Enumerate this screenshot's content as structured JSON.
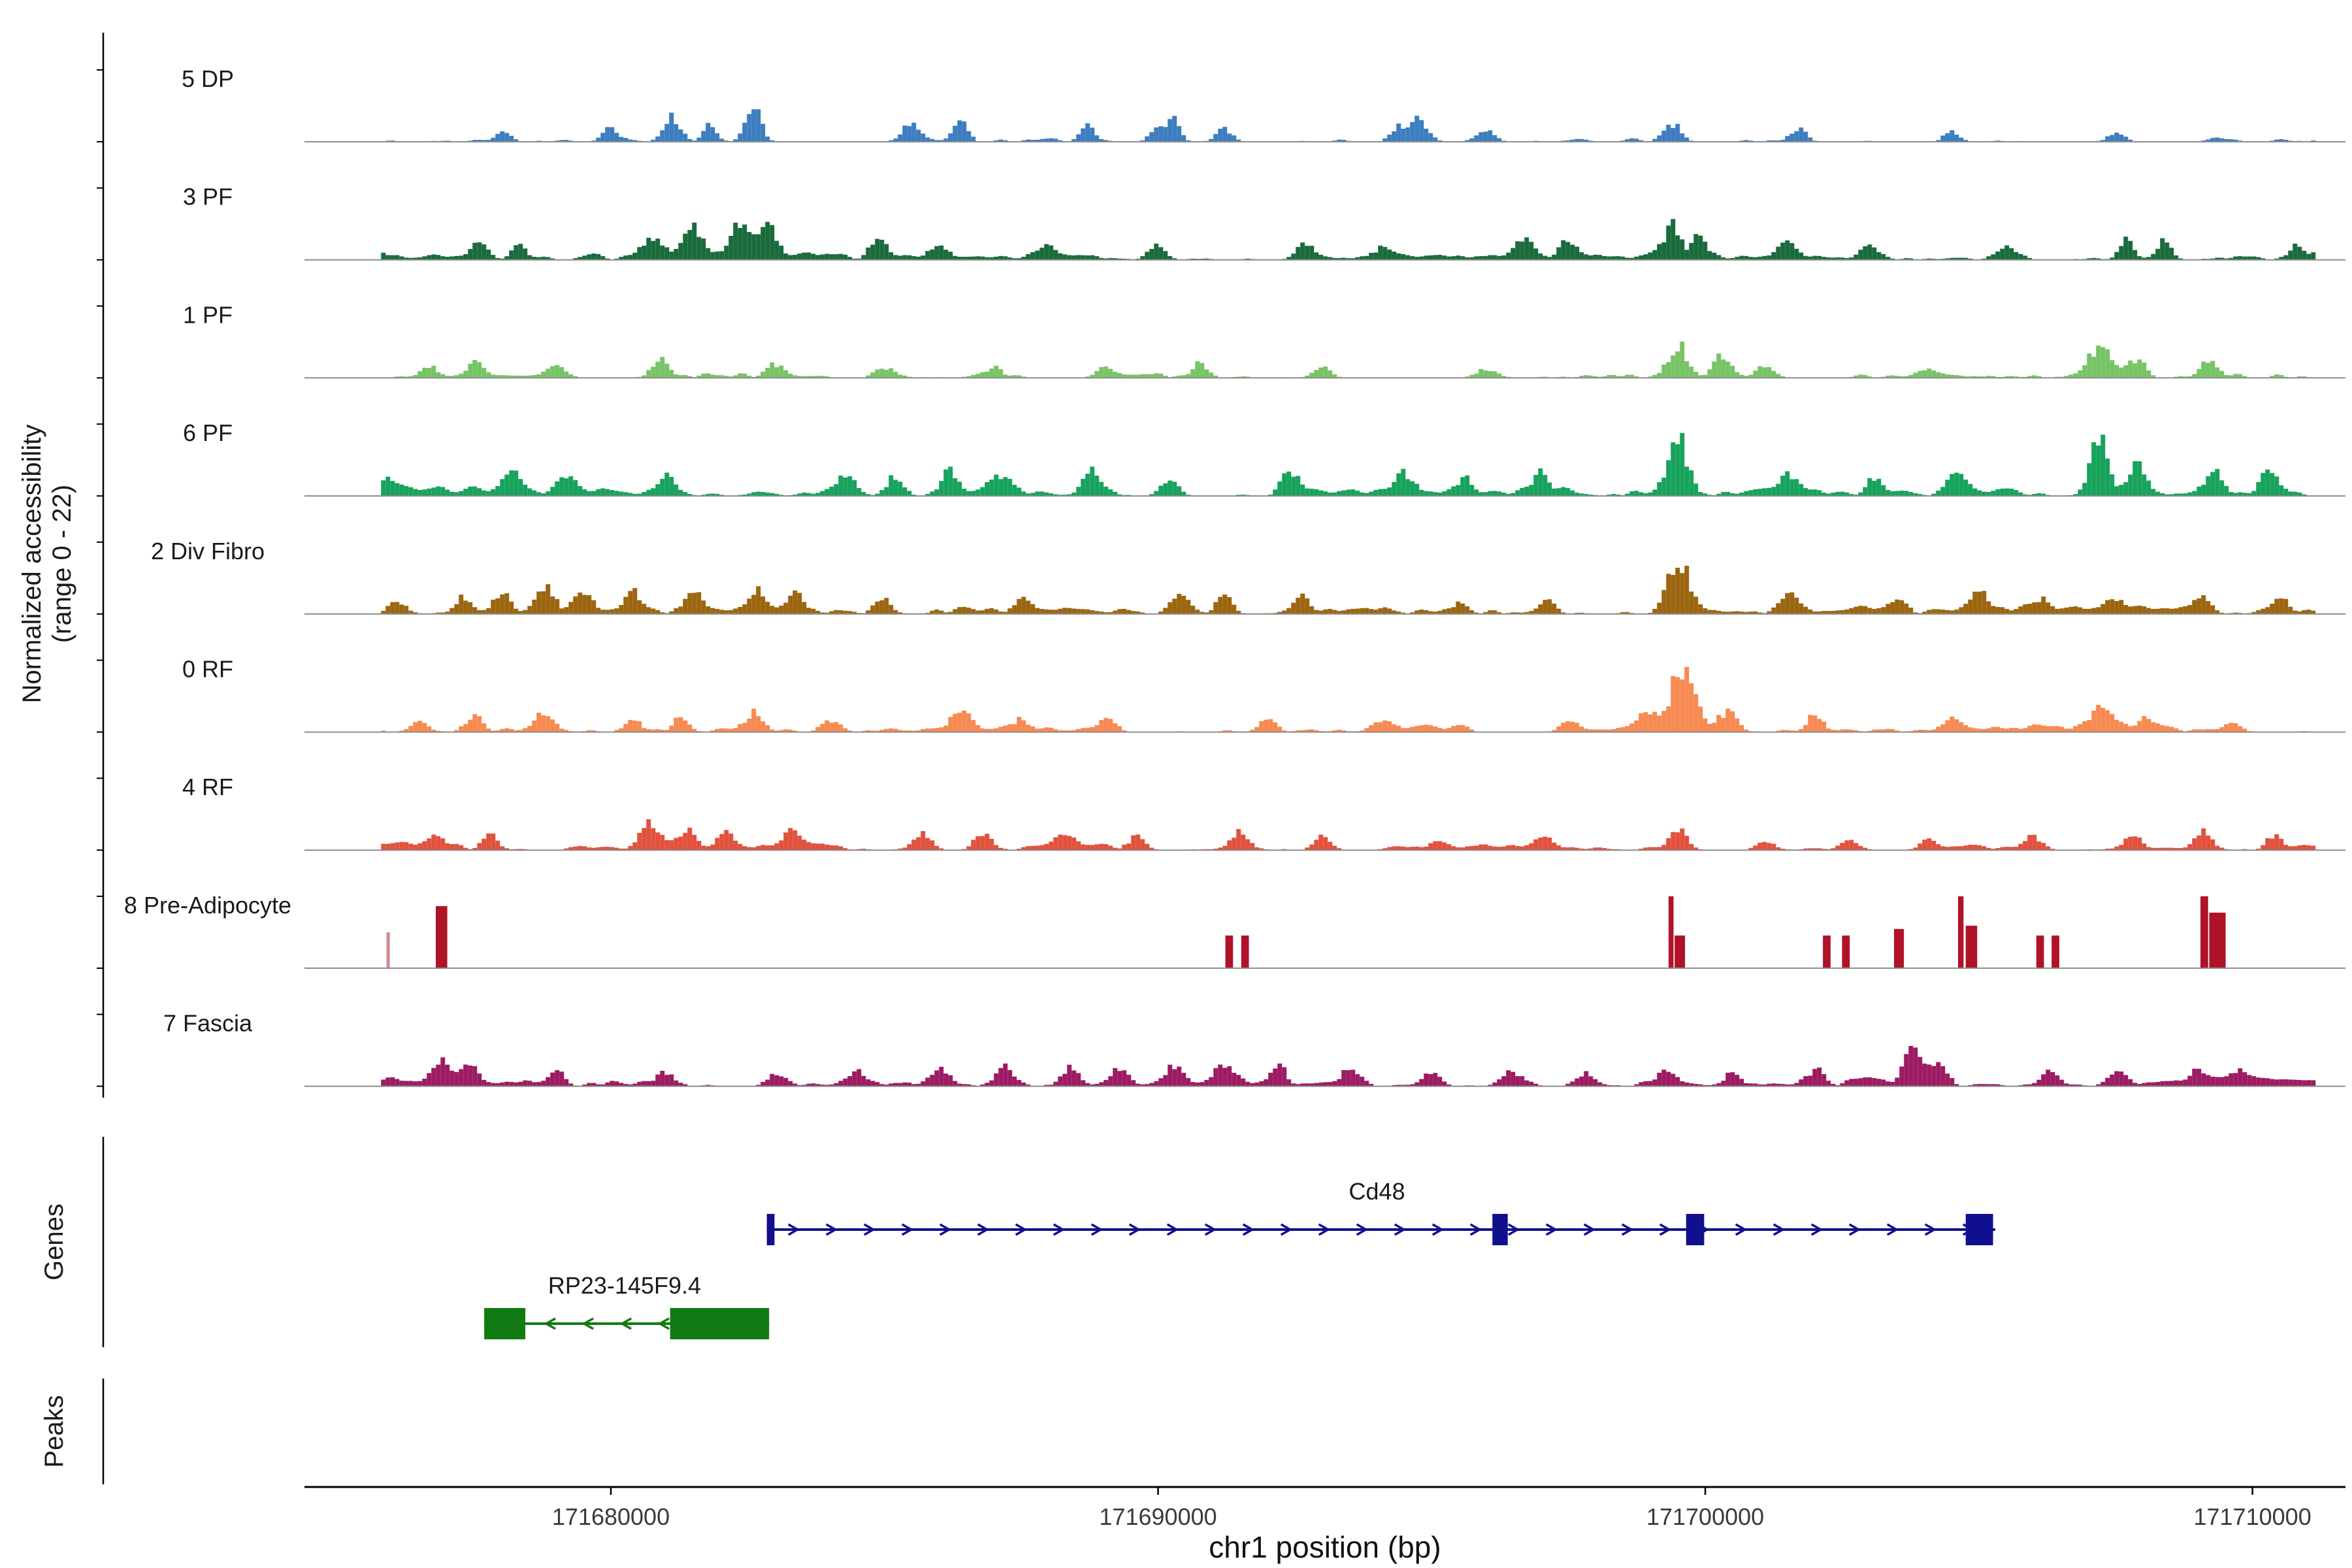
{
  "figure": {
    "y_axis_label_line1": "Normalized accessibility",
    "y_axis_label_line2": "(range 0 - 22)",
    "genes_section_label": "Genes",
    "peaks_section_label": "Peaks",
    "x_axis_title": "chr1 position (bp)"
  },
  "chart_data": {
    "type": "area",
    "title": "",
    "xlabel": "chr1 position (bp)",
    "ylabel": "Normalized accessibility (range 0 - 22)",
    "region": {
      "chromosome": "chr1",
      "start": 171674400,
      "end": 171711700,
      "data_extent": [
        171675800,
        171711200
      ]
    },
    "x_ticks": [
      171680000,
      171690000,
      171700000,
      171710000
    ],
    "y_value_range": [
      0,
      22
    ],
    "baseline_color": "#8C8C8C",
    "tracks": [
      {
        "name": "5 DP",
        "color": "#3C7EC0",
        "style": "wiggle",
        "noise": {
          "seed": 101,
          "density": 0.2,
          "max": 1.6
        },
        "peaks": [
          [
            171678000,
            3,
            120
          ],
          [
            171680000,
            4,
            140
          ],
          [
            171681100,
            8,
            130
          ],
          [
            171681800,
            5,
            110
          ],
          [
            171682500,
            6,
            110
          ],
          [
            171682700,
            7,
            100
          ],
          [
            171685500,
            5,
            150
          ],
          [
            171686400,
            7,
            120
          ],
          [
            171688700,
            5,
            120
          ],
          [
            171690000,
            5,
            130
          ],
          [
            171690300,
            6,
            110
          ],
          [
            171691200,
            4,
            140
          ],
          [
            171694500,
            5,
            150
          ],
          [
            171694800,
            6,
            120
          ],
          [
            171696000,
            4,
            130
          ],
          [
            171699400,
            5,
            150
          ],
          [
            171701700,
            4,
            140
          ],
          [
            171704500,
            3,
            140
          ],
          [
            171707500,
            3,
            130
          ]
        ]
      },
      {
        "name": "3 PF",
        "color": "#1A6B3C",
        "style": "wiggle",
        "noise": {
          "seed": 102,
          "density": 0.42,
          "max": 1.8
        },
        "peaks": [
          [
            171677600,
            4,
            140
          ],
          [
            171678300,
            4,
            120
          ],
          [
            171680800,
            7,
            180
          ],
          [
            171681500,
            9,
            170
          ],
          [
            171682400,
            10,
            190
          ],
          [
            171682900,
            8,
            150
          ],
          [
            171684900,
            6,
            150
          ],
          [
            171686000,
            4,
            150
          ],
          [
            171688000,
            4,
            150
          ],
          [
            171690000,
            4,
            150
          ],
          [
            171692700,
            5,
            140
          ],
          [
            171694100,
            4,
            150
          ],
          [
            171696700,
            6,
            150
          ],
          [
            171697500,
            5,
            130
          ],
          [
            171699400,
            10,
            150
          ],
          [
            171699900,
            6,
            130
          ],
          [
            171701500,
            4,
            150
          ],
          [
            171703000,
            4,
            150
          ],
          [
            171705500,
            3,
            150
          ],
          [
            171707700,
            5,
            140
          ],
          [
            171708400,
            5,
            130
          ],
          [
            171710800,
            3,
            120
          ]
        ]
      },
      {
        "name": "1 PF",
        "color": "#77C466",
        "style": "wiggle",
        "noise": {
          "seed": 103,
          "density": 0.36,
          "max": 1.7
        },
        "peaks": [
          [
            171676700,
            3,
            150
          ],
          [
            171677500,
            4,
            140
          ],
          [
            171679000,
            4,
            150
          ],
          [
            171680900,
            5,
            160
          ],
          [
            171683000,
            4,
            150
          ],
          [
            171685000,
            3,
            150
          ],
          [
            171687000,
            3,
            150
          ],
          [
            171689000,
            3,
            140
          ],
          [
            171690800,
            4,
            130
          ],
          [
            171693000,
            3,
            150
          ],
          [
            171696000,
            3,
            150
          ],
          [
            171699500,
            10,
            170
          ],
          [
            171700300,
            7,
            150
          ],
          [
            171701100,
            4,
            150
          ],
          [
            171704000,
            3,
            150
          ],
          [
            171707200,
            8,
            200
          ],
          [
            171707900,
            5,
            150
          ],
          [
            171709200,
            4,
            150
          ]
        ]
      },
      {
        "name": "6 PF",
        "color": "#17A35C",
        "style": "wiggle",
        "noise": {
          "seed": 104,
          "density": 0.5,
          "max": 2.2
        },
        "peaks": [
          [
            171676000,
            3,
            150
          ],
          [
            171678200,
            5,
            160
          ],
          [
            171679200,
            5,
            150
          ],
          [
            171681000,
            6,
            160
          ],
          [
            171684300,
            6,
            180
          ],
          [
            171685200,
            6,
            150
          ],
          [
            171686200,
            6,
            150
          ],
          [
            171687100,
            5,
            150
          ],
          [
            171688800,
            7,
            150
          ],
          [
            171690200,
            5,
            150
          ],
          [
            171692400,
            7,
            150
          ],
          [
            171694500,
            6,
            160
          ],
          [
            171695600,
            5,
            150
          ],
          [
            171697000,
            6,
            150
          ],
          [
            171699500,
            18,
            170
          ],
          [
            171701500,
            5,
            150
          ],
          [
            171703100,
            5,
            150
          ],
          [
            171704600,
            5,
            150
          ],
          [
            171707200,
            16,
            160
          ],
          [
            171707900,
            8,
            150
          ],
          [
            171709300,
            7,
            160
          ],
          [
            171710300,
            6,
            150
          ]
        ]
      },
      {
        "name": "2 Div Fibro",
        "color": "#9C6611",
        "style": "wiggle",
        "noise": {
          "seed": 105,
          "density": 0.45,
          "max": 2.0
        },
        "peaks": [
          [
            171676100,
            4,
            150
          ],
          [
            171677300,
            5,
            150
          ],
          [
            171678000,
            6,
            160
          ],
          [
            171678800,
            8,
            170
          ],
          [
            171679500,
            6,
            150
          ],
          [
            171680400,
            6,
            150
          ],
          [
            171681500,
            5,
            150
          ],
          [
            171682700,
            7,
            160
          ],
          [
            171683400,
            5,
            150
          ],
          [
            171685000,
            4,
            150
          ],
          [
            171687500,
            4,
            150
          ],
          [
            171690400,
            5,
            150
          ],
          [
            171691200,
            5,
            140
          ],
          [
            171692600,
            4,
            150
          ],
          [
            171695500,
            3,
            150
          ],
          [
            171697100,
            3,
            150
          ],
          [
            171699500,
            16,
            180
          ],
          [
            171701500,
            4,
            150
          ],
          [
            171703500,
            4,
            150
          ],
          [
            171705000,
            5,
            150
          ],
          [
            171706100,
            4,
            150
          ],
          [
            171707500,
            4,
            150
          ],
          [
            171709100,
            3,
            150
          ],
          [
            171710500,
            5,
            140
          ]
        ]
      },
      {
        "name": "0 RF",
        "color": "#F78A52",
        "style": "wiggle",
        "noise": {
          "seed": 106,
          "density": 0.42,
          "max": 1.8
        },
        "peaks": [
          [
            171676500,
            3,
            150
          ],
          [
            171677500,
            4,
            150
          ],
          [
            171678800,
            5,
            160
          ],
          [
            171680400,
            4,
            150
          ],
          [
            171681300,
            4,
            140
          ],
          [
            171682600,
            6,
            160
          ],
          [
            171684000,
            3,
            150
          ],
          [
            171686400,
            6,
            170
          ],
          [
            171687500,
            4,
            150
          ],
          [
            171689100,
            3,
            150
          ],
          [
            171692000,
            4,
            150
          ],
          [
            171694100,
            3,
            150
          ],
          [
            171697500,
            3,
            150
          ],
          [
            171698900,
            6,
            200
          ],
          [
            171699600,
            20,
            220
          ],
          [
            171700400,
            6,
            180
          ],
          [
            171702000,
            4,
            150
          ],
          [
            171704500,
            3,
            150
          ],
          [
            171707300,
            7,
            250
          ],
          [
            171708100,
            4,
            150
          ],
          [
            171709600,
            3,
            150
          ]
        ]
      },
      {
        "name": "4 RF",
        "color": "#E1523D",
        "style": "wiggle",
        "noise": {
          "seed": 107,
          "density": 0.5,
          "max": 1.8
        },
        "peaks": [
          [
            171676800,
            3,
            150
          ],
          [
            171677800,
            4,
            150
          ],
          [
            171680700,
            8,
            170
          ],
          [
            171681400,
            6,
            150
          ],
          [
            171682100,
            5,
            150
          ],
          [
            171683300,
            5,
            150
          ],
          [
            171685700,
            5,
            160
          ],
          [
            171686800,
            5,
            150
          ],
          [
            171688300,
            4,
            150
          ],
          [
            171689600,
            4,
            150
          ],
          [
            171691500,
            5,
            150
          ],
          [
            171693000,
            4,
            150
          ],
          [
            171695100,
            3,
            150
          ],
          [
            171697000,
            3,
            150
          ],
          [
            171699500,
            6,
            160
          ],
          [
            171701100,
            3,
            150
          ],
          [
            171702600,
            3,
            150
          ],
          [
            171704100,
            4,
            150
          ],
          [
            171706000,
            4,
            150
          ],
          [
            171707800,
            5,
            150
          ],
          [
            171709100,
            5,
            150
          ],
          [
            171710400,
            4,
            140
          ]
        ]
      },
      {
        "name": "8 Pre-Adipocyte",
        "color": "#B01227",
        "style": "blocks",
        "noise": {
          "seed": 108,
          "density": 0,
          "max": 0
        },
        "blocks": [
          [
            171675900,
            60,
            11,
            0.5
          ],
          [
            171676800,
            210,
            19,
            1
          ],
          [
            171691230,
            140,
            10,
            1
          ],
          [
            171691520,
            140,
            10,
            1
          ],
          [
            171699330,
            90,
            22,
            1
          ],
          [
            171699440,
            190,
            10,
            1
          ],
          [
            171702150,
            140,
            10,
            1
          ],
          [
            171702500,
            140,
            10,
            1
          ],
          [
            171703450,
            180,
            12,
            1
          ],
          [
            171704620,
            100,
            22,
            1
          ],
          [
            171704760,
            210,
            13,
            1
          ],
          [
            171706050,
            140,
            10,
            1
          ],
          [
            171706330,
            140,
            10,
            1
          ],
          [
            171709050,
            140,
            22,
            1
          ],
          [
            171709210,
            300,
            17,
            1
          ]
        ]
      },
      {
        "name": "7 Fascia",
        "color": "#9C1B63",
        "style": "wiggle",
        "noise": {
          "seed": 109,
          "density": 0.55,
          "max": 2.2
        },
        "peaks": [
          [
            171676900,
            6,
            150
          ],
          [
            171677400,
            5,
            140
          ],
          [
            171679000,
            3,
            150
          ],
          [
            171681000,
            4,
            160
          ],
          [
            171683000,
            3,
            150
          ],
          [
            171684500,
            4,
            150
          ],
          [
            171686000,
            4,
            150
          ],
          [
            171687200,
            5,
            150
          ],
          [
            171688400,
            6,
            150
          ],
          [
            171689300,
            5,
            150
          ],
          [
            171690300,
            6,
            150
          ],
          [
            171691200,
            7,
            150
          ],
          [
            171692200,
            5,
            150
          ],
          [
            171693500,
            5,
            150
          ],
          [
            171695000,
            4,
            150
          ],
          [
            171696500,
            4,
            150
          ],
          [
            171697800,
            4,
            150
          ],
          [
            171699300,
            5,
            150
          ],
          [
            171700500,
            4,
            150
          ],
          [
            171702000,
            4,
            150
          ],
          [
            171703800,
            9,
            140
          ],
          [
            171704300,
            6,
            140
          ],
          [
            171706300,
            4,
            150
          ],
          [
            171707500,
            3,
            150
          ],
          [
            171709000,
            4,
            150
          ],
          [
            171709800,
            4,
            140
          ]
        ]
      }
    ],
    "genes": [
      {
        "name": "Cd48",
        "color": "#10108E",
        "strand": "+",
        "start": 171682850,
        "end": 171705300,
        "exons": [
          [
            171682850,
            171682990
          ],
          [
            171696110,
            171696390
          ],
          [
            171699650,
            171699980
          ],
          [
            171704760,
            171705260
          ]
        ],
        "label_pos": 171694000
      },
      {
        "name": "RP23-145F9.4",
        "color": "#127A12",
        "strand": "-",
        "start": 171677685,
        "end": 171682892,
        "exons": [
          [
            171677685,
            171678436
          ],
          [
            171681082,
            171682892
          ]
        ],
        "label_pos": 171680250
      }
    ],
    "peaks": []
  }
}
